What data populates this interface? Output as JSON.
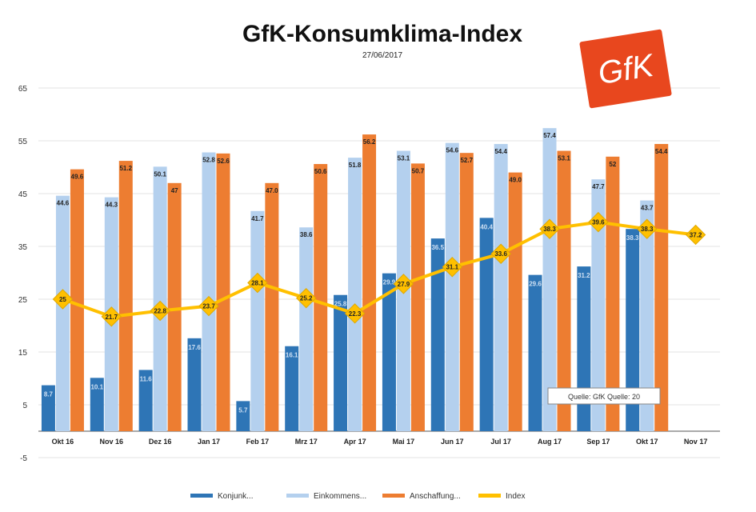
{
  "title": "GfK-Konsumklima-Index",
  "subtitle": "27/06/2017",
  "logo_text": "GfK",
  "source_note": "Quelle: GfK Quelle: 20",
  "colors": {
    "einkommen": "#2e75b6",
    "konjunktur": "#b4d0ee",
    "anschaffung": "#ed7d31",
    "index": "#ffc000",
    "logo": "#e8471e"
  },
  "legend": [
    {
      "key": "einkommen",
      "label": "Konjunk..."
    },
    {
      "key": "konjunktur",
      "label": "Einkommens..."
    },
    {
      "key": "anschaffung",
      "label": "Anschaffung..."
    },
    {
      "key": "index",
      "label": "Index"
    }
  ],
  "chart_data": {
    "type": "bar",
    "title": "GfK-Konsumklima-Index",
    "ylim": [
      -5,
      65
    ],
    "yticks": [
      -5,
      5,
      15,
      25,
      35,
      45,
      55,
      65
    ],
    "grid": true,
    "legend_position": "bottom",
    "categories": [
      "Okt 16",
      "Nov 16",
      "Dez 16",
      "Jan 17",
      "Feb 17",
      "Mrz 17",
      "Apr 17",
      "Mai 17",
      "Jun 17",
      "Jul 17",
      "Aug 17",
      "Sep 17",
      "Okt 17",
      "Nov 17"
    ],
    "series": [
      {
        "name": "Konjunk...",
        "key": "einkommen",
        "type": "bar",
        "values": [
          8.7,
          10.1,
          11.6,
          17.6,
          5.7,
          16.1,
          25.8,
          29.9,
          36.5,
          40.4,
          29.6,
          31.2,
          38.3,
          null
        ],
        "labels": [
          "8.7",
          "10.1",
          "11.6",
          "17.6",
          "5.7",
          "16.1",
          "25.8",
          "29.9",
          "36.5",
          "40.4",
          "29.6",
          "31.2",
          "38.3",
          ""
        ]
      },
      {
        "name": "Einkommens...",
        "key": "konjunktur",
        "type": "bar",
        "values": [
          44.6,
          44.3,
          50.1,
          52.8,
          41.7,
          38.6,
          51.8,
          53.1,
          54.6,
          54.4,
          57.4,
          47.7,
          43.7,
          null
        ],
        "labels": [
          "44.6",
          "44.3",
          "50.1",
          "52.8",
          "41.7",
          "38.6",
          "51.8",
          "53.1",
          "54.6",
          "54.4",
          "57.4",
          "47.7",
          "43.7",
          ""
        ]
      },
      {
        "name": "Anschaffung...",
        "key": "anschaffung",
        "type": "bar",
        "values": [
          49.6,
          51.2,
          47,
          52.6,
          47.0,
          50.6,
          56.2,
          50.7,
          52.7,
          49.0,
          53.1,
          52,
          54.4,
          null
        ],
        "labels": [
          "49.6",
          "51.2",
          "47",
          "52.6",
          "47.0",
          "50.6",
          "56.2",
          "50.7",
          "52.7",
          "49.0",
          "53.1",
          "52",
          "54.4",
          ""
        ]
      },
      {
        "name": "Index",
        "key": "index",
        "type": "line",
        "values": [
          25,
          21.7,
          22.8,
          23.7,
          28.1,
          25.2,
          22.3,
          27.9,
          31.1,
          33.6,
          38.3,
          39.6,
          38.3,
          37.2
        ],
        "labels": [
          "25",
          "21.7",
          "22.8",
          "23.7",
          "28.1",
          "25.2",
          "22.3",
          "27.9",
          "31.1",
          "33.6",
          "38.3",
          "39.6",
          "38.3",
          "37.2"
        ]
      }
    ]
  }
}
